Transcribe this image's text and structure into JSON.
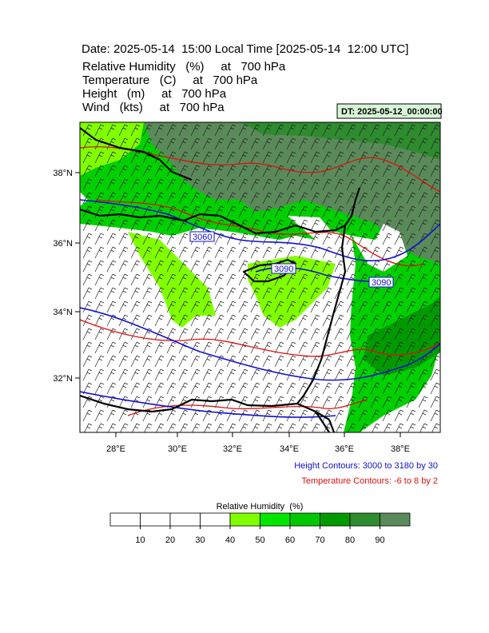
{
  "header": {
    "title": "Date: 2025-05-14  15:00 Local Time [2025-05-14  12:00 UTC]",
    "fields": [
      "Relative Humidity   (%)     at   700 hPa",
      "Temperature   (C)     at   700 hPa",
      "Height   (m)     at   700 hPa",
      "Wind   (kts)     at   700 hPa"
    ],
    "dt": "DT: 2025-05-12_00:00:00"
  },
  "map": {
    "lon_labels": [
      "28°E",
      "30°E",
      "32°E",
      "34°E",
      "36°E",
      "38°E"
    ],
    "lat_labels": [
      "38°N",
      "36°N",
      "34°N",
      "32°N"
    ],
    "contour_labels": [
      "3060",
      "3090",
      "3090"
    ]
  },
  "footer": {
    "height_contours": "Height Contours: 3000 to 3180 by 30",
    "temperature_contours": "Temperature Contours: -6 to 8 by 2"
  },
  "colorbar": {
    "title": "Relative Humidity  (%)",
    "colors": [
      "#ffffff",
      "#ffffff",
      "#ffffff",
      "#ffffff",
      "#80ff00",
      "#00e600",
      "#00c800",
      "#009a00",
      "#2e8b2e",
      "#5a8a5a"
    ],
    "labels": [
      10,
      20,
      30,
      40,
      50,
      60,
      70,
      80,
      90
    ]
  }
}
